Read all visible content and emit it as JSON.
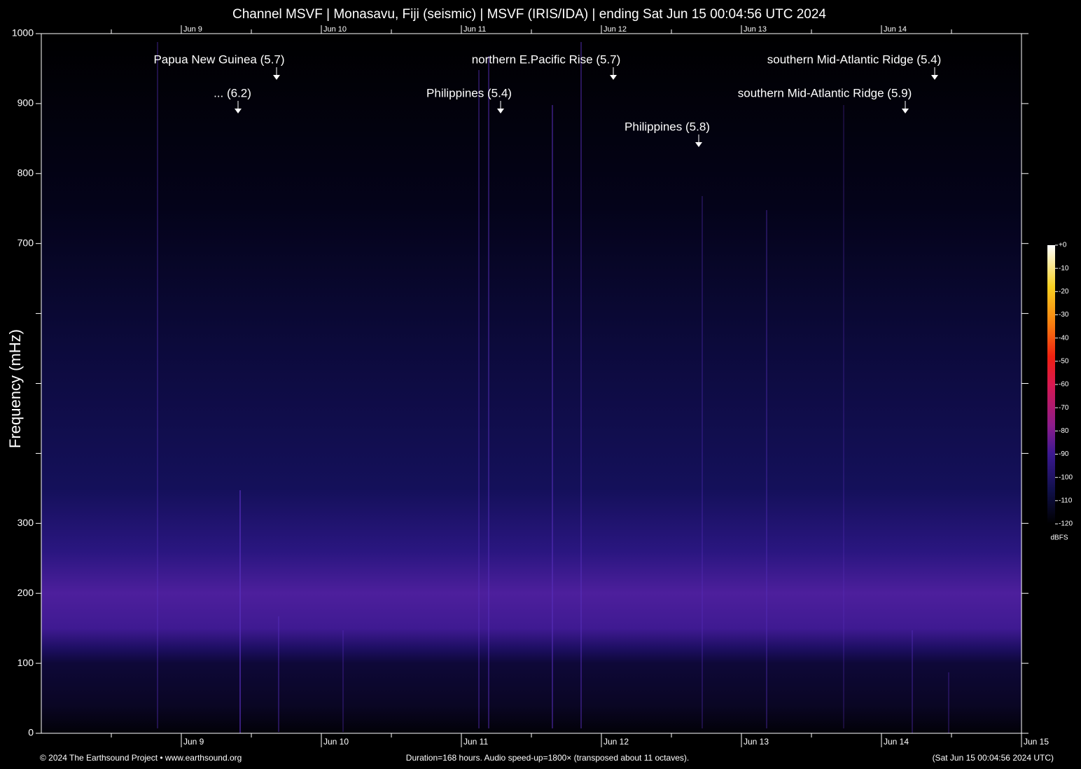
{
  "chart_data": {
    "type": "spectrogram",
    "title": "Channel MSVF | Monasavu, Fiji (seismic) | MSVF (IRIS/IDA) | ending Sat Jun 15 00:04:56 UTC 2024",
    "ylabel": "Frequency (mHz)",
    "ylim": [
      0,
      1000
    ],
    "yticks": [
      0,
      100,
      200,
      300,
      {
        "value": 400,
        "label": null
      },
      {
        "value": 500,
        "label": null
      },
      {
        "value": 600,
        "label": null
      },
      700,
      800,
      900,
      1000
    ],
    "xticks": [
      "Jun 9",
      "Jun 10",
      "Jun 11",
      "Jun 12",
      "Jun 13",
      "Jun 14",
      "Jun 15"
    ],
    "annotations": [
      "Papua New Guinea (5.7)",
      "... (6.2)",
      "northern E.Pacific Rise (5.7)",
      "Philippines (5.4)",
      "Philippines (5.8)",
      "southern Mid-Atlantic Ridge (5.4)",
      "southern Mid-Atlantic Ridge (5.9)"
    ],
    "colorbar": {
      "label": "dBFS",
      "lim": [
        -120,
        0
      ],
      "ticks": [
        {
          "value": 0,
          "label": "+0"
        },
        -10,
        -20,
        -30,
        -40,
        -50,
        -60,
        -70,
        -80,
        -90,
        -100,
        -110,
        -120
      ]
    },
    "footer": [
      "© 2024 The Earthsound Project • www.earthsound.org",
      "Duration=168 hours. Audio speed-up=1800× (transposed about 11 octaves).",
      "(Sat Jun 15 00:04:56 2024 UTC)"
    ]
  }
}
